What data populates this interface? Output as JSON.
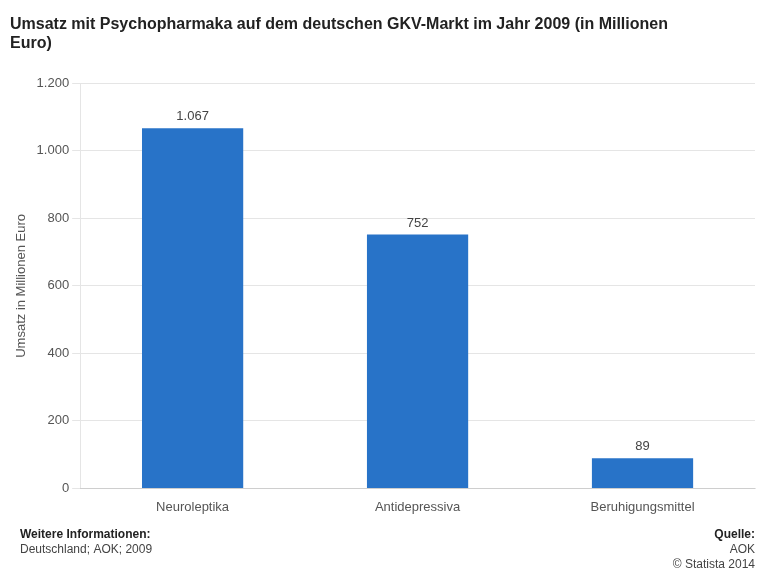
{
  "chart_data": {
    "type": "bar",
    "title": "Umsatz mit Psychopharmaka auf dem deutschen GKV-Markt im Jahr 2009 (in Millionen\nEuro)",
    "categories": [
      "Neuroleptika",
      "Antidepressiva",
      "Beruhigungsmittel"
    ],
    "values": [
      1067,
      752,
      89
    ],
    "value_labels": [
      "1.067",
      "752",
      "89"
    ],
    "data_labels": true,
    "color": "#2873C8",
    "ylabel": "Umsatz in Millionen Euro",
    "ylim": [
      0,
      1200
    ],
    "yticks": [
      0,
      200,
      400,
      600,
      800,
      {
        "value": 1000,
        "label": "1.000"
      },
      {
        "value": 1200,
        "label": "1.200"
      }
    ],
    "grid": true,
    "annotations": [
      [
        "Weitere Informationen:",
        "Deutschland; AOK; 2009"
      ],
      [
        "Quelle:",
        "AOK",
        "© Statista 2014"
      ]
    ]
  }
}
